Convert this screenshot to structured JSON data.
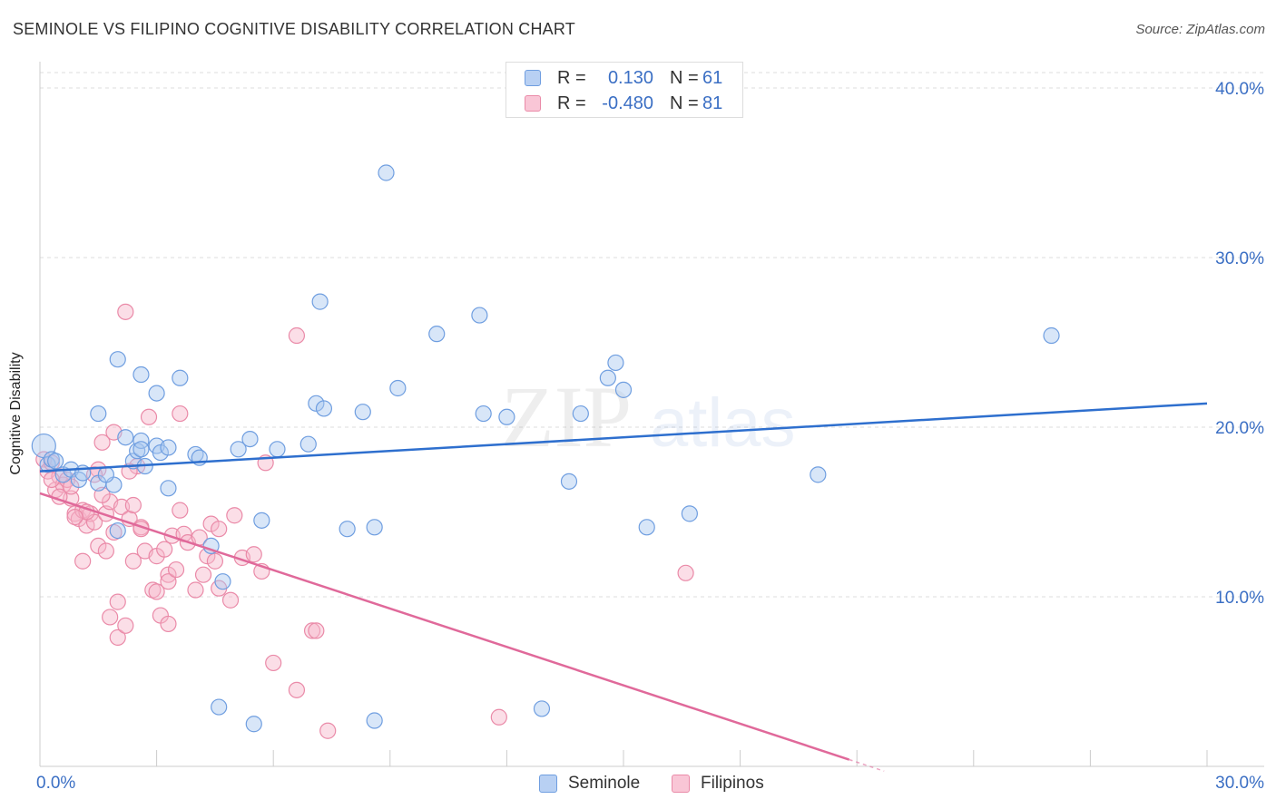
{
  "header": {
    "title": "SEMINOLE VS FILIPINO COGNITIVE DISABILITY CORRELATION CHART",
    "source": "Source: ZipAtlas.com"
  },
  "watermark": {
    "zip": "ZIP",
    "atlas": "atlas"
  },
  "legend_top": {
    "rows": [
      {
        "r_label": "R =",
        "r_value": "0.130",
        "n_label": "N =",
        "n_value": "61"
      },
      {
        "r_label": "R =",
        "r_value": "-0.480",
        "n_label": "N =",
        "n_value": "81"
      }
    ]
  },
  "legend_bottom": {
    "items": [
      {
        "label": "Seminole"
      },
      {
        "label": "Filipinos"
      }
    ]
  },
  "colors": {
    "seminole_fill": "#a9c7f0",
    "seminole_stroke": "#6f9ee0",
    "seminole_line": "#2e6fce",
    "filipinos_fill": "#f6b6c9",
    "filipinos_stroke": "#ea8aa8",
    "filipinos_line": "#e0699a",
    "tick_label": "#3b6fc4",
    "grid": "#dddddd"
  },
  "chart_data": {
    "type": "scatter",
    "title": "SEMINOLE VS FILIPINO COGNITIVE DISABILITY CORRELATION CHART",
    "xlabel": "",
    "ylabel": "Cognitive Disability",
    "xlim": [
      0,
      30
    ],
    "ylim": [
      0,
      40
    ],
    "x_tick_labels": [
      "0.0%",
      "30.0%"
    ],
    "y_tick_labels": [
      "10.0%",
      "20.0%",
      "30.0%",
      "40.0%"
    ],
    "y_ticks": [
      10,
      20,
      30,
      40
    ],
    "grid": true,
    "legend_position": "top-center",
    "series": [
      {
        "name": "Seminole",
        "R": 0.13,
        "N": 61,
        "trend": {
          "x": [
            0,
            30
          ],
          "y": [
            17.4,
            21.4
          ]
        },
        "points": [
          [
            0.1,
            18.9
          ],
          [
            0.2,
            17.8
          ],
          [
            0.3,
            18.1
          ],
          [
            0.4,
            18.0
          ],
          [
            0.6,
            17.2
          ],
          [
            0.8,
            17.5
          ],
          [
            1.0,
            16.9
          ],
          [
            1.1,
            17.3
          ],
          [
            1.5,
            16.7
          ],
          [
            1.9,
            16.6
          ],
          [
            2.0,
            13.9
          ],
          [
            1.5,
            20.8
          ],
          [
            2.0,
            24.0
          ],
          [
            2.2,
            19.4
          ],
          [
            2.4,
            18.0
          ],
          [
            2.5,
            18.6
          ],
          [
            2.6,
            23.1
          ],
          [
            2.6,
            19.2
          ],
          [
            2.7,
            17.7
          ],
          [
            3.0,
            18.9
          ],
          [
            3.0,
            22.0
          ],
          [
            3.1,
            18.5
          ],
          [
            3.3,
            18.8
          ],
          [
            3.3,
            16.4
          ],
          [
            3.6,
            22.9
          ],
          [
            4.0,
            18.4
          ],
          [
            4.1,
            18.2
          ],
          [
            4.4,
            13.0
          ],
          [
            5.1,
            18.7
          ],
          [
            5.4,
            19.3
          ],
          [
            5.7,
            14.5
          ],
          [
            6.1,
            18.7
          ],
          [
            6.9,
            19.0
          ],
          [
            7.1,
            21.4
          ],
          [
            7.2,
            27.4
          ],
          [
            7.3,
            21.1
          ],
          [
            7.9,
            14.0
          ],
          [
            8.3,
            20.9
          ],
          [
            8.6,
            14.1
          ],
          [
            8.9,
            35.0
          ],
          [
            9.2,
            22.3
          ],
          [
            10.2,
            25.5
          ],
          [
            11.3,
            26.6
          ],
          [
            11.4,
            20.8
          ],
          [
            12.0,
            20.6
          ],
          [
            13.6,
            16.8
          ],
          [
            13.9,
            20.8
          ],
          [
            14.6,
            22.9
          ],
          [
            14.8,
            23.8
          ],
          [
            15.0,
            22.2
          ],
          [
            15.6,
            14.1
          ],
          [
            16.7,
            14.9
          ],
          [
            20.0,
            17.2
          ],
          [
            26.0,
            25.4
          ],
          [
            4.7,
            10.9
          ],
          [
            4.6,
            3.5
          ],
          [
            5.5,
            2.5
          ],
          [
            8.6,
            2.7
          ],
          [
            12.9,
            3.4
          ],
          [
            1.7,
            17.2
          ],
          [
            2.6,
            18.7
          ]
        ]
      },
      {
        "name": "Filipinos",
        "R": -0.48,
        "N": 81,
        "trend": {
          "x": [
            0,
            20.8
          ],
          "y": [
            16.1,
            0.4
          ]
        },
        "points": [
          [
            0.1,
            18.1
          ],
          [
            0.2,
            17.4
          ],
          [
            0.3,
            17.9
          ],
          [
            0.4,
            16.3
          ],
          [
            0.5,
            17.1
          ],
          [
            0.6,
            16.6
          ],
          [
            0.7,
            16.9
          ],
          [
            0.8,
            15.8
          ],
          [
            0.9,
            14.9
          ],
          [
            1.0,
            14.6
          ],
          [
            1.1,
            15.1
          ],
          [
            1.1,
            12.1
          ],
          [
            1.2,
            14.2
          ],
          [
            1.3,
            14.9
          ],
          [
            1.4,
            14.4
          ],
          [
            1.5,
            17.5
          ],
          [
            1.5,
            13.0
          ],
          [
            1.6,
            19.1
          ],
          [
            1.7,
            14.9
          ],
          [
            1.7,
            12.7
          ],
          [
            1.8,
            15.6
          ],
          [
            1.9,
            19.7
          ],
          [
            1.9,
            13.8
          ],
          [
            2.0,
            9.7
          ],
          [
            2.0,
            7.6
          ],
          [
            2.1,
            15.3
          ],
          [
            2.2,
            26.8
          ],
          [
            2.2,
            8.3
          ],
          [
            2.3,
            14.6
          ],
          [
            2.4,
            15.4
          ],
          [
            2.5,
            17.7
          ],
          [
            2.6,
            14.1
          ],
          [
            2.6,
            14.0
          ],
          [
            2.7,
            12.7
          ],
          [
            2.8,
            20.6
          ],
          [
            2.9,
            10.4
          ],
          [
            3.0,
            10.3
          ],
          [
            3.0,
            12.4
          ],
          [
            3.1,
            8.9
          ],
          [
            3.2,
            12.8
          ],
          [
            3.3,
            11.3
          ],
          [
            3.3,
            10.9
          ],
          [
            3.3,
            8.4
          ],
          [
            3.4,
            13.6
          ],
          [
            3.5,
            11.6
          ],
          [
            3.6,
            20.8
          ],
          [
            3.7,
            13.7
          ],
          [
            3.8,
            13.2
          ],
          [
            4.0,
            10.4
          ],
          [
            4.1,
            13.5
          ],
          [
            4.3,
            12.4
          ],
          [
            4.4,
            14.3
          ],
          [
            4.5,
            12.1
          ],
          [
            4.6,
            10.5
          ],
          [
            4.6,
            14.0
          ],
          [
            4.9,
            9.8
          ],
          [
            5.0,
            14.8
          ],
          [
            5.2,
            12.3
          ],
          [
            5.5,
            12.5
          ],
          [
            5.7,
            11.5
          ],
          [
            5.8,
            17.9
          ],
          [
            6.0,
            6.1
          ],
          [
            6.6,
            25.4
          ],
          [
            6.6,
            4.5
          ],
          [
            7.0,
            8.0
          ],
          [
            7.1,
            8.0
          ],
          [
            7.4,
            2.1
          ],
          [
            11.8,
            2.9
          ],
          [
            16.6,
            11.4
          ],
          [
            0.8,
            16.5
          ],
          [
            1.4,
            17.2
          ],
          [
            1.2,
            15.0
          ],
          [
            2.3,
            17.4
          ],
          [
            0.9,
            14.7
          ],
          [
            1.6,
            16.0
          ],
          [
            0.3,
            16.9
          ],
          [
            0.5,
            15.9
          ],
          [
            2.4,
            12.1
          ],
          [
            3.6,
            15.1
          ],
          [
            4.2,
            11.3
          ],
          [
            1.8,
            8.8
          ]
        ]
      }
    ]
  }
}
